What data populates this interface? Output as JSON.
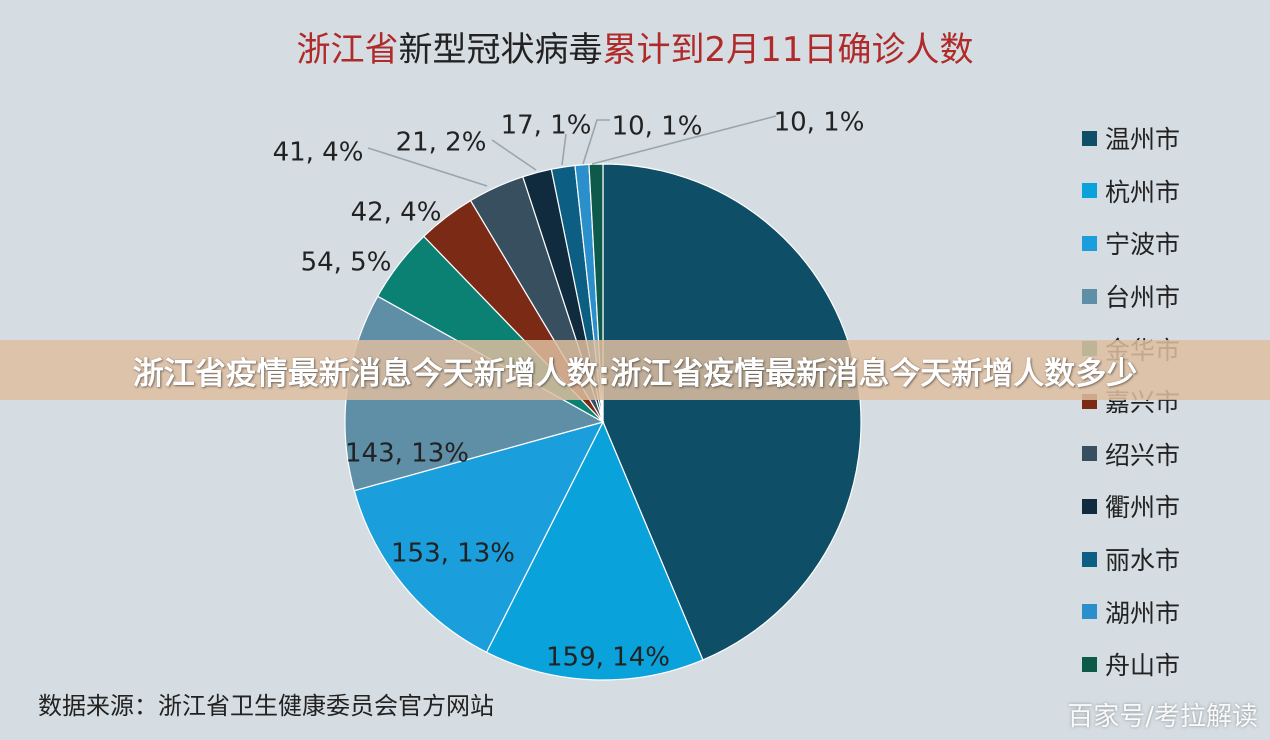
{
  "title": {
    "part1": "浙江省",
    "part2": "新型冠状病毒",
    "part3": "累计到2月11日确诊人数"
  },
  "source": "数据来源：浙江省卫生健康委员会官方网站",
  "banner": "浙江省疫情最新消息今天新增人数:浙江省疫情最新消息今天新增人数多少",
  "watermark": "百家号/考拉解读",
  "chart_data": {
    "type": "pie",
    "title": "浙江省新型冠状病毒累计到2月11日确诊人数",
    "legend_position": "right",
    "slices": [
      {
        "name": "温州市",
        "value": 504,
        "label": "",
        "color": "#0e4e66"
      },
      {
        "name": "杭州市",
        "value": 159,
        "label": "159, 14%",
        "color": "#0aa2db"
      },
      {
        "name": "宁波市",
        "value": 153,
        "label": "153, 13%",
        "color": "#1a9fdc"
      },
      {
        "name": "台州市",
        "value": 143,
        "label": "143, 13%",
        "color": "#5f8fa7"
      },
      {
        "name": "金华市",
        "value": 54,
        "label": "54, 5%",
        "color": "#0b8173"
      },
      {
        "name": "嘉兴市",
        "value": 42,
        "label": "42, 4%",
        "color": "#7b2a16"
      },
      {
        "name": "绍兴市",
        "value": 41,
        "label": "41, 4%",
        "color": "#374f5f"
      },
      {
        "name": "衢州市",
        "value": 21,
        "label": "21, 2%",
        "color": "#0f2b3d"
      },
      {
        "name": "丽水市",
        "value": 17,
        "label": "17, 1%",
        "color": "#0c5f82"
      },
      {
        "name": "湖州市",
        "value": 10,
        "label": "10, 1%",
        "color": "#2b8fcb"
      },
      {
        "name": "舟山市",
        "value": 10,
        "label": "10, 1%",
        "color": "#0e5a4a"
      }
    ]
  }
}
